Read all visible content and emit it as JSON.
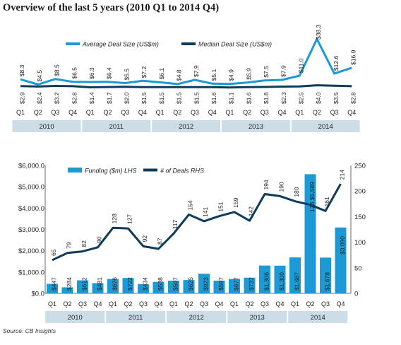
{
  "title": "Overview of the last 5 years (2010 Q1 to 2014 Q4)",
  "source": "Source: CB Insights",
  "colors": {
    "light_blue": "#1b9ad6",
    "dark_navy": "#0e3b5c",
    "year_band": "#ccdde8",
    "text": "#222222"
  },
  "chart_data": [
    {
      "type": "line",
      "categories": [
        "Q1",
        "Q2",
        "Q3",
        "Q4",
        "Q1",
        "Q2",
        "Q3",
        "Q4",
        "Q1",
        "Q2",
        "Q3",
        "Q4",
        "Q1",
        "Q2",
        "Q3",
        "Q4",
        "Q1",
        "Q2",
        "Q3",
        "Q4"
      ],
      "years": [
        "2010",
        "2011",
        "2012",
        "2013",
        "2014"
      ],
      "series": [
        {
          "name": "Average Deal Size (US$m)",
          "color": "#1b9ad6",
          "values": [
            8.3,
            4.5,
            8.5,
            6.5,
            6.3,
            6.4,
            5.5,
            7.2,
            6.1,
            4.8,
            7.9,
            5.1,
            4.9,
            5.9,
            7.5,
            7.9,
            11.0,
            38.3,
            12.6,
            16.9
          ],
          "labels": [
            "$8.3",
            "$4.5",
            "$8.5",
            "$6.5",
            "$6.3",
            "$6.4",
            "$5.5",
            "$7.2",
            "$6.1",
            "$4.8",
            "$7.9",
            "$5.1",
            "$4.9",
            "$5.9",
            "$7.5",
            "$7.9",
            "$11.0",
            "$38.3",
            "$12.6",
            "$16.9"
          ]
        },
        {
          "name": "Median Deal Size (US$m)",
          "color": "#0e3b5c",
          "values": [
            2.9,
            2.4,
            3.2,
            2.8,
            1.4,
            1.7,
            2.0,
            1.5,
            1.5,
            1.5,
            1.5,
            1.6,
            1.1,
            1.6,
            1.8,
            2.3,
            2.5,
            4.0,
            3.5,
            2.8
          ],
          "labels": [
            "$2.9",
            "$2.4",
            "$3.2",
            "$2.8",
            "$1.4",
            "$1.7",
            "$2.0",
            "$1.5",
            "$1.5",
            "$1.5",
            "$1.5",
            "$1.6",
            "$1.1",
            "$1.6",
            "$1.8",
            "$2.3",
            "$2.5",
            "$4.0",
            "$3.5",
            "$2.8"
          ]
        }
      ],
      "legend": "top"
    },
    {
      "type": "bar",
      "categories": [
        "Q1",
        "Q2",
        "Q3",
        "Q4",
        "Q1",
        "Q2",
        "Q3",
        "Q4",
        "Q1",
        "Q2",
        "Q3",
        "Q4",
        "Q1",
        "Q2",
        "Q3",
        "Q4",
        "Q1",
        "Q2",
        "Q3",
        "Q4"
      ],
      "years": [
        "2010",
        "2011",
        "2012",
        "2013",
        "2014"
      ],
      "series": [
        {
          "name": "Funding ($m) LHS",
          "type": "bar",
          "axis": "left",
          "color": "#1b9ad6",
          "values": [
            447,
            284,
            612,
            481,
            676,
            722,
            434,
            538,
            597,
            625,
            923,
            597,
            677,
            737,
            1306,
            1300,
            1687,
            5589,
            1678,
            3090
          ],
          "labels": [
            "$447",
            "$284",
            "$612",
            "$481",
            "$676",
            "$722",
            "$434",
            "$538",
            "$597",
            "$625",
            "$923",
            "$597",
            "$677",
            "$737",
            "$1,306",
            "$1,300",
            "$1,687",
            "$5,589",
            "$1,678",
            "$3,090"
          ]
        },
        {
          "name": "# of Deals RHS",
          "type": "line",
          "axis": "right",
          "color": "#0e3b5c",
          "values": [
            65,
            79,
            82,
            90,
            128,
            127,
            92,
            87,
            117,
            154,
            141,
            151,
            159,
            142,
            194,
            190,
            180,
            173,
            161,
            214
          ],
          "labels": [
            "65",
            "79",
            "82",
            "90",
            "128",
            "127",
            "92",
            "87",
            "117",
            "154",
            "141",
            "151",
            "159",
            "142",
            "194",
            "190",
            "180",
            "173",
            "161",
            "214"
          ]
        }
      ],
      "ylim_left": [
        0,
        6000
      ],
      "ylim_right": [
        0,
        250
      ],
      "yticks_left": [
        "$0.0",
        "$1,000.0",
        "$2,000.0",
        "$3,000.0",
        "$4,000.0",
        "$5,000.0",
        "$6,000.0"
      ],
      "yticks_right": [
        "0",
        "50",
        "100",
        "150",
        "200",
        "250"
      ],
      "legend": "top"
    }
  ]
}
